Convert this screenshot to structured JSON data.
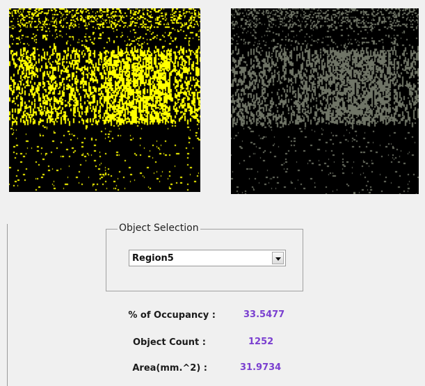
{
  "images": {
    "mask": {
      "icon": "binary-mask-image",
      "foreground_color": "#ffff00",
      "background_color": "#000000"
    },
    "overlay": {
      "icon": "grayscale-overlay-image",
      "foreground_color": "#6f7466",
      "background_color": "#000000"
    }
  },
  "object_selection": {
    "legend": "Object Selection",
    "selected": "Region5"
  },
  "stats": {
    "occupancy": {
      "label": "% of Occupancy :",
      "value": "33.5477"
    },
    "object_count": {
      "label": "Object Count :",
      "value": "1252"
    },
    "area": {
      "label": "Area(mm.^2) :",
      "value": "31.9734"
    }
  },
  "colors": {
    "window_bg": "#f0f0f0",
    "value_text": "#7a3fd0"
  }
}
